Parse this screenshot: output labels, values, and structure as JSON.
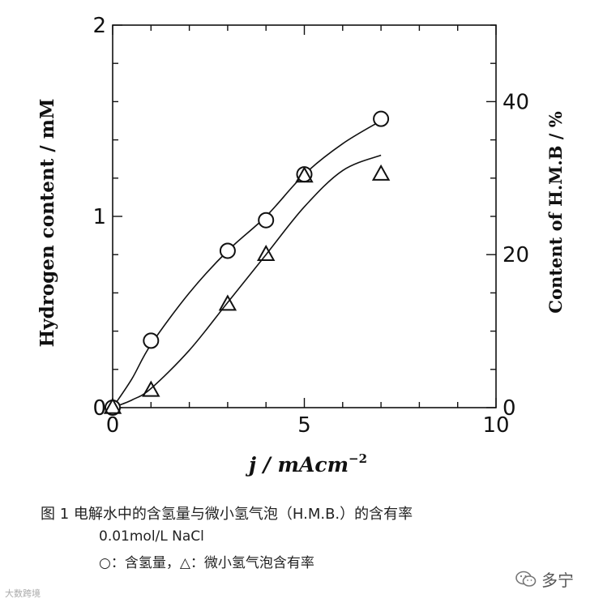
{
  "chart_data": {
    "type": "line",
    "xlabel": "j / mAcm",
    "xlabel_sup": "−2",
    "ylabel": "Hydrogen content / mM",
    "y2label": "Content of H.M.B / %",
    "xlim": [
      0,
      10
    ],
    "ylim": [
      0,
      2
    ],
    "y2lim": [
      0,
      50
    ],
    "xticks": [
      "0",
      "5",
      "10"
    ],
    "yticks": [
      "0",
      "1",
      "2"
    ],
    "y2ticks": [
      "0",
      "20",
      "40"
    ],
    "grid": false,
    "series": [
      {
        "marker": "circle",
        "axis": "left",
        "points": [
          [
            0,
            0.0
          ],
          [
            1,
            0.35
          ],
          [
            3,
            0.82
          ],
          [
            4,
            0.98
          ],
          [
            5,
            1.22
          ],
          [
            7,
            1.51
          ]
        ],
        "curve": [
          [
            0,
            0.0
          ],
          [
            0.5,
            0.15
          ],
          [
            1,
            0.33
          ],
          [
            2,
            0.6
          ],
          [
            3,
            0.82
          ],
          [
            4,
            1.0
          ],
          [
            5,
            1.22
          ],
          [
            6,
            1.38
          ],
          [
            7,
            1.5
          ]
        ]
      },
      {
        "marker": "triangle",
        "axis": "left",
        "points": [
          [
            0,
            0.0
          ],
          [
            1,
            0.09
          ],
          [
            3,
            0.54
          ],
          [
            4,
            0.8
          ],
          [
            5,
            1.21
          ],
          [
            7,
            1.22
          ]
        ],
        "curve": [
          [
            0,
            0.0
          ],
          [
            0.5,
            0.04
          ],
          [
            1,
            0.1
          ],
          [
            2,
            0.3
          ],
          [
            3,
            0.55
          ],
          [
            4,
            0.8
          ],
          [
            5,
            1.05
          ],
          [
            6,
            1.24
          ],
          [
            7,
            1.32
          ]
        ]
      }
    ]
  },
  "caption": {
    "line1": "图 1  电解水中的含氢量与微小氢气泡（H.M.B.）的含有率",
    "line2": "0.01mol/L NaCl",
    "line3": "○：含氢量，△：微小氢气泡含有率"
  },
  "watermark": {
    "left": "大数跨境",
    "right": "多宁"
  }
}
